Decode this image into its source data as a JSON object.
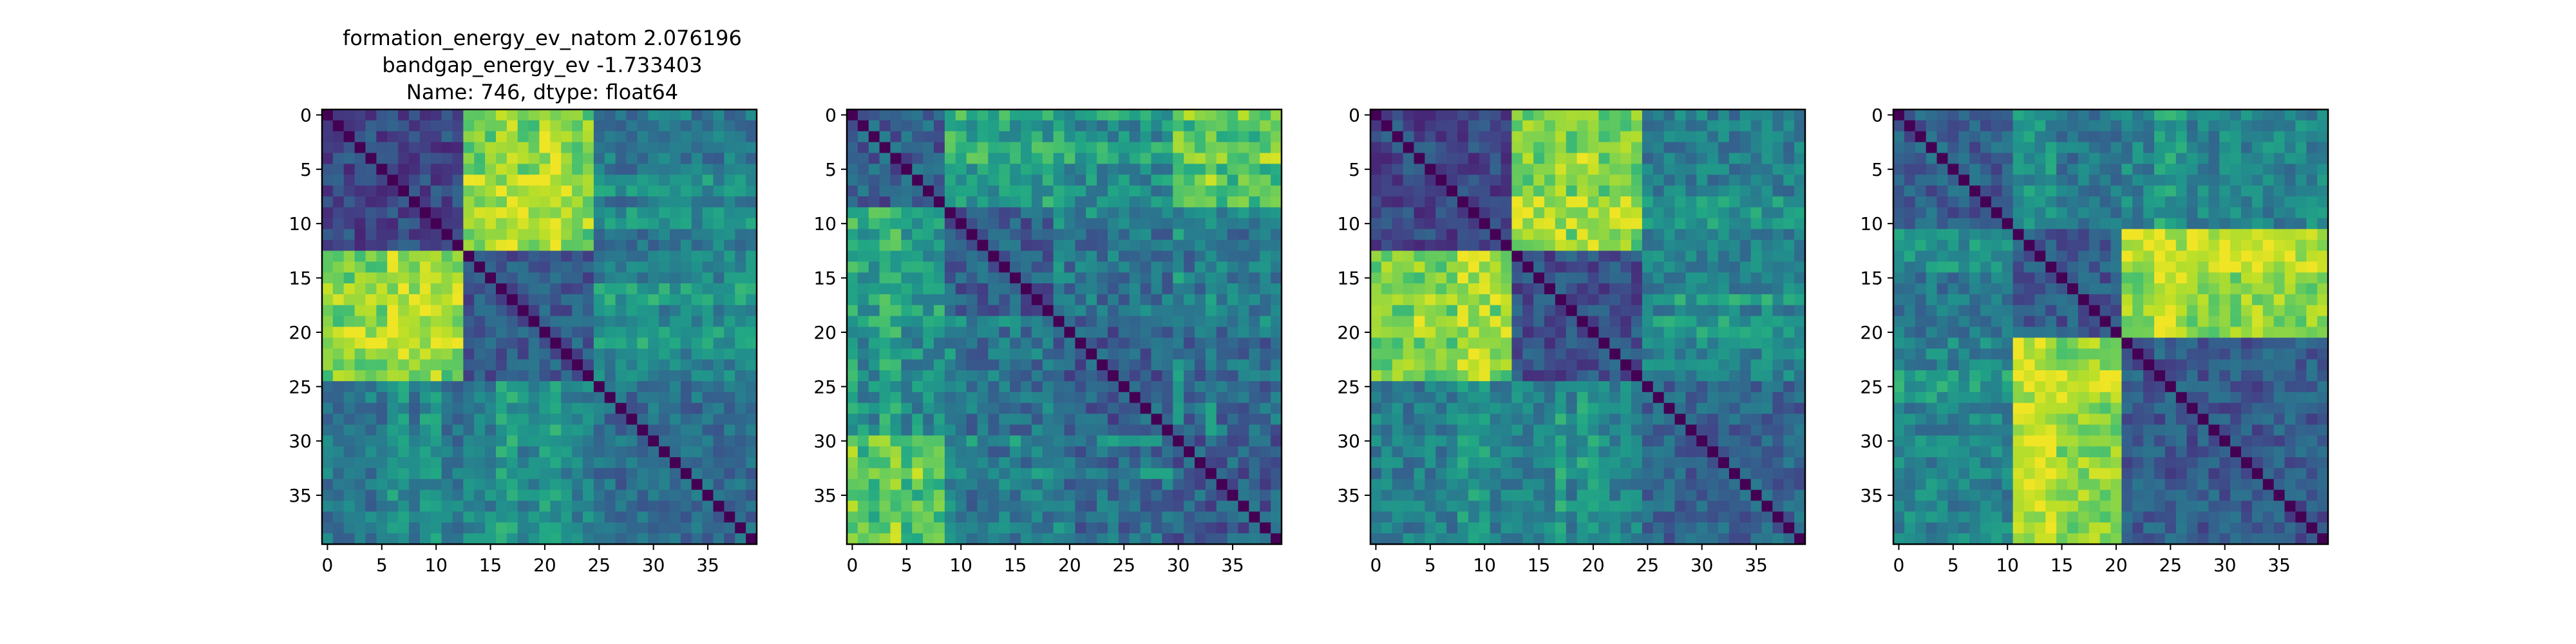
{
  "figure": {
    "title_lines": [
      "formation_energy_ev_natom    2.076196",
      "bandgap_energy_ev           -1.733403",
      "Name: 746, dtype: float64"
    ]
  },
  "chart_data": [
    {
      "type": "heatmap",
      "title": "",
      "xlabel": "",
      "ylabel": "",
      "n": 40,
      "colormap": "viridis",
      "vmin": 0,
      "vmax": 1,
      "xlim": [
        -0.5,
        39.5
      ],
      "ylim": [
        39.5,
        -0.5
      ],
      "xticks": [
        0,
        5,
        10,
        15,
        20,
        25,
        30,
        35
      ],
      "yticks": [
        0,
        5,
        10,
        15,
        20,
        25,
        30,
        35
      ],
      "blocks": [
        0,
        13,
        25,
        40
      ],
      "block_levels": [
        [
          0.22,
          0.78,
          0.4
        ],
        [
          0.78,
          0.28,
          0.45
        ],
        [
          0.4,
          0.45,
          0.35
        ]
      ],
      "bright_bands": [
        6,
        7,
        9,
        10,
        16,
        17,
        20,
        21
      ],
      "noise": 0.12,
      "seed": 11
    },
    {
      "type": "heatmap",
      "title": "",
      "xlabel": "",
      "ylabel": "",
      "n": 40,
      "colormap": "viridis",
      "vmin": 0,
      "vmax": 1,
      "xlim": [
        -0.5,
        39.5
      ],
      "ylim": [
        39.5,
        -0.5
      ],
      "xticks": [
        0,
        5,
        10,
        15,
        20,
        25,
        30,
        35
      ],
      "yticks": [
        0,
        5,
        10,
        15,
        20,
        25,
        30,
        35
      ],
      "blocks": [
        0,
        9,
        19,
        30,
        40
      ],
      "block_levels": [
        [
          0.3,
          0.55,
          0.48,
          0.7
        ],
        [
          0.55,
          0.3,
          0.38,
          0.4
        ],
        [
          0.48,
          0.38,
          0.3,
          0.35
        ],
        [
          0.7,
          0.4,
          0.35,
          0.3
        ]
      ],
      "bright_bands": [
        0,
        3,
        4,
        9,
        19,
        30,
        33
      ],
      "noise": 0.14,
      "seed": 23
    },
    {
      "type": "heatmap",
      "title": "",
      "xlabel": "",
      "ylabel": "",
      "n": 40,
      "colormap": "viridis",
      "vmin": 0,
      "vmax": 1,
      "xlim": [
        -0.5,
        39.5
      ],
      "ylim": [
        39.5,
        -0.5
      ],
      "xticks": [
        0,
        5,
        10,
        15,
        20,
        25,
        30,
        35
      ],
      "yticks": [
        0,
        5,
        10,
        15,
        20,
        25,
        30,
        35
      ],
      "blocks": [
        0,
        13,
        25,
        40
      ],
      "block_levels": [
        [
          0.22,
          0.78,
          0.42
        ],
        [
          0.78,
          0.25,
          0.45
        ],
        [
          0.42,
          0.45,
          0.32
        ]
      ],
      "bright_bands": [
        8,
        9,
        10,
        17,
        19,
        20
      ],
      "noise": 0.12,
      "seed": 37
    },
    {
      "type": "heatmap",
      "title": "",
      "xlabel": "",
      "ylabel": "",
      "n": 40,
      "colormap": "viridis",
      "vmin": 0,
      "vmax": 1,
      "xlim": [
        -0.5,
        39.5
      ],
      "ylim": [
        39.5,
        -0.5
      ],
      "xticks": [
        0,
        5,
        10,
        15,
        20,
        25,
        30,
        35
      ],
      "yticks": [
        0,
        5,
        10,
        15,
        20,
        25,
        30,
        35
      ],
      "blocks": [
        0,
        11,
        21,
        40
      ],
      "block_levels": [
        [
          0.3,
          0.4,
          0.45
        ],
        [
          0.4,
          0.28,
          0.82
        ],
        [
          0.45,
          0.82,
          0.28
        ]
      ],
      "bright_bands": [
        11,
        12,
        13,
        14,
        24,
        25,
        26
      ],
      "noise": 0.12,
      "seed": 51
    }
  ]
}
